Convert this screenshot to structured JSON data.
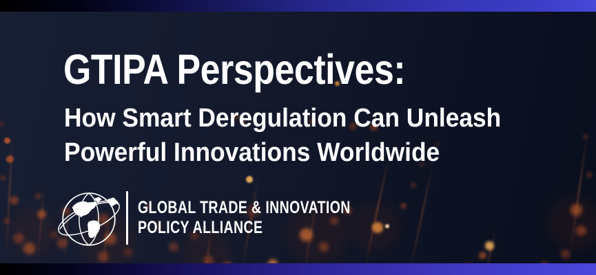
{
  "banner": {
    "title": "GTIPA Perspectives:",
    "subtitle_line1": "How Smart Deregulation Can Unleash",
    "subtitle_line2": "Powerful Innovations Worldwide"
  },
  "logo": {
    "icon": "globe-icon",
    "name_line1": "GLOBAL TRADE & INNOVATION",
    "name_line2": "POLICY ALLIANCE"
  },
  "colors": {
    "background_navy": "#121829",
    "accent_bar_left": "#000000",
    "accent_bar_right": "#4848d8",
    "bokeh_orange": "#d96f33",
    "text_white": "#ffffff"
  }
}
